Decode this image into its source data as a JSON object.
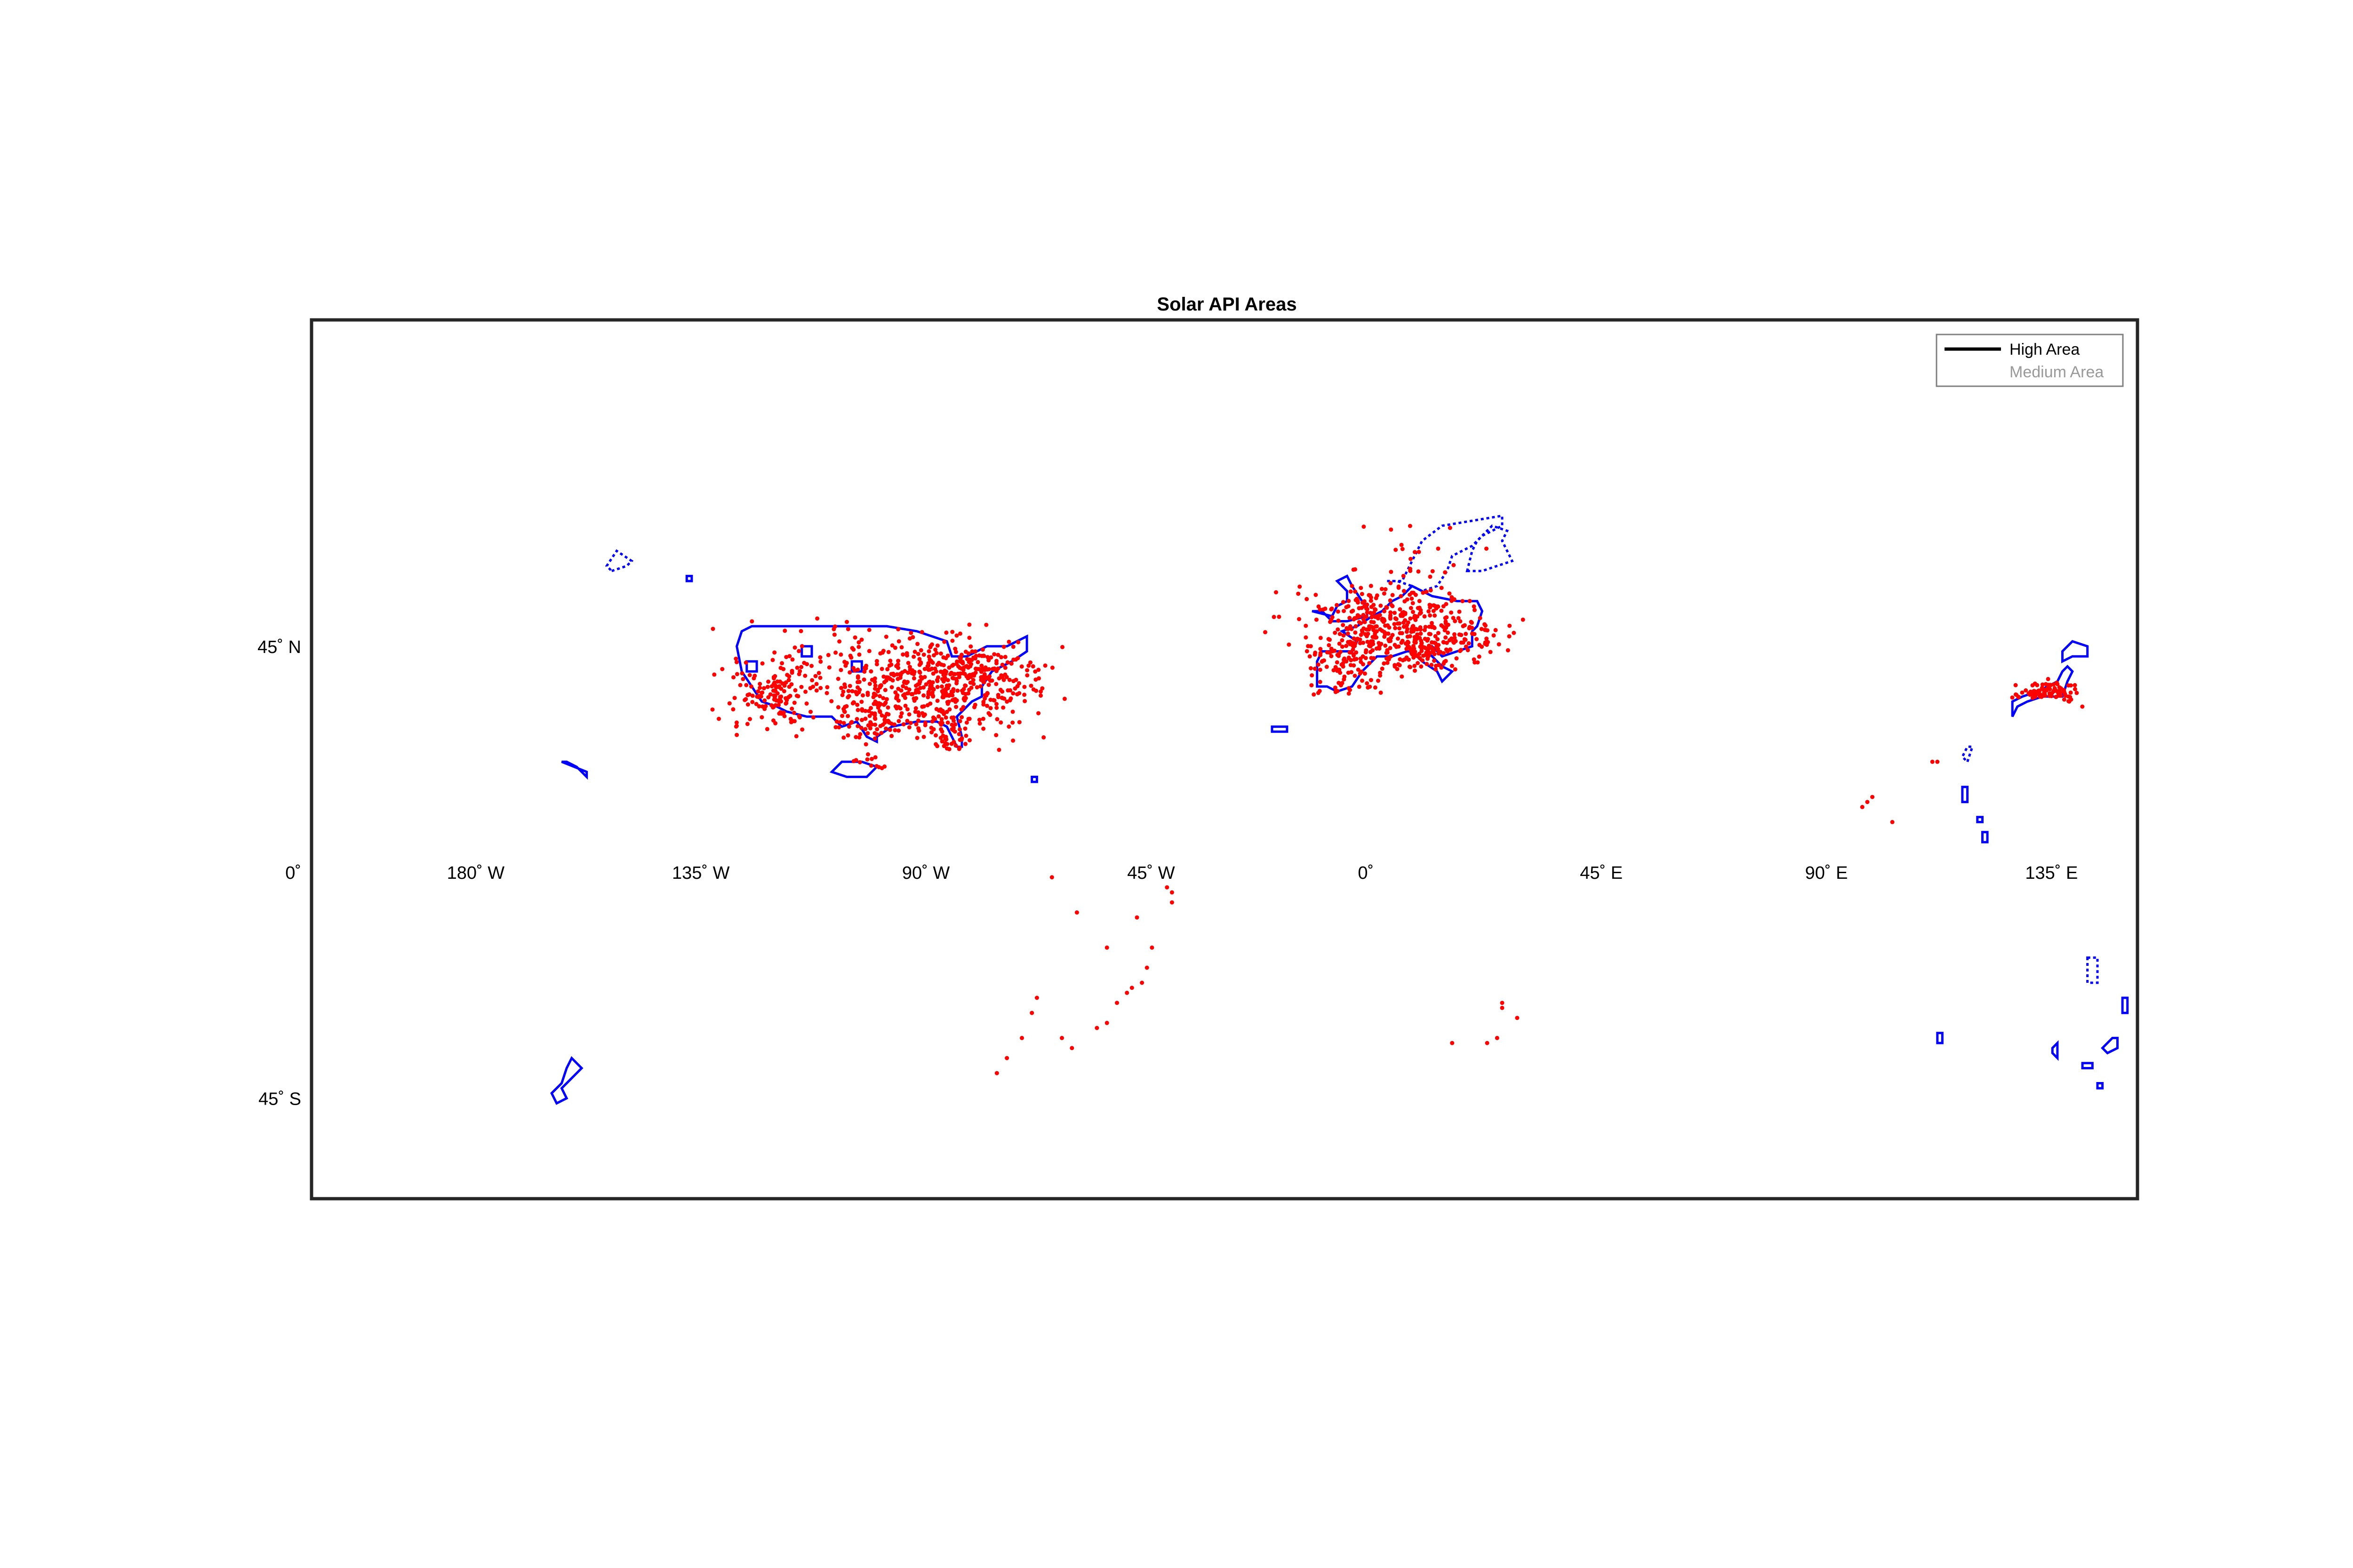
{
  "title": "Solar API Areas",
  "colors": {
    "boundary": "#0000ff",
    "point": "#ff0000",
    "frame": "#262626",
    "legend_high": "#000000",
    "legend_medium": "#999999"
  },
  "legend": {
    "placement": "top-right",
    "items": [
      {
        "label": "High Area",
        "style": "solid"
      },
      {
        "label": "Medium Area",
        "style": "faded"
      }
    ]
  },
  "axes": {
    "projection": "equirectangular",
    "lon_range": [
      -210,
      155
    ],
    "lat_range": [
      -65,
      110
    ],
    "lon_ticks": [
      {
        "value": -180,
        "label": "180˚ W"
      },
      {
        "value": -135,
        "label": "135˚ W"
      },
      {
        "value": -90,
        "label": "90˚ W"
      },
      {
        "value": -45,
        "label": "45˚ W"
      },
      {
        "value": 0,
        "label": "0˚"
      },
      {
        "value": 45,
        "label": "45˚ E"
      },
      {
        "value": 90,
        "label": "90˚ E"
      },
      {
        "value": 135,
        "label": "135˚ E"
      }
    ],
    "lat_ticks": [
      {
        "value": 45,
        "label": "45˚ N"
      },
      {
        "value": 0,
        "label": "0˚"
      },
      {
        "value": -45,
        "label": "45˚ S"
      }
    ]
  },
  "regions": [
    {
      "name": "",
      "dash": false,
      "lonlat": [
        [
          -124,
          48
        ],
        [
          -122,
          49
        ],
        [
          -95,
          49
        ],
        [
          -89,
          48
        ],
        [
          -83,
          46
        ],
        [
          -82,
          43
        ],
        [
          -79,
          43
        ],
        [
          -75,
          45
        ],
        [
          -71,
          45
        ],
        [
          -67,
          47
        ],
        [
          -67,
          44
        ],
        [
          -70,
          42
        ],
        [
          -74,
          40
        ],
        [
          -76,
          37
        ],
        [
          -76,
          35
        ],
        [
          -78,
          34
        ],
        [
          -81,
          31
        ],
        [
          -80,
          27
        ],
        [
          -80,
          25
        ],
        [
          -81,
          25
        ],
        [
          -83,
          29
        ],
        [
          -85,
          30
        ],
        [
          -89,
          30
        ],
        [
          -94,
          29
        ],
        [
          -97,
          27
        ],
        [
          -97,
          26
        ],
        [
          -99,
          27
        ],
        [
          -101,
          30
        ],
        [
          -104,
          29
        ],
        [
          -106,
          31
        ],
        [
          -111,
          31
        ],
        [
          -115,
          32
        ],
        [
          -117,
          33
        ],
        [
          -120,
          34
        ],
        [
          -122,
          37
        ],
        [
          -124,
          40
        ],
        [
          -125,
          45
        ]
      ]
    },
    {
      "name": "",
      "dash": false,
      "lonlat": [
        [
          -9,
          37
        ],
        [
          -9,
          42
        ],
        [
          -8,
          44
        ],
        [
          -2,
          44
        ],
        [
          -1,
          46
        ],
        [
          -4,
          48
        ],
        [
          -1,
          49
        ],
        [
          2,
          51
        ],
        [
          4,
          52
        ],
        [
          6,
          54
        ],
        [
          8,
          55
        ],
        [
          10,
          57
        ],
        [
          12,
          56
        ],
        [
          14,
          55
        ],
        [
          19,
          54
        ],
        [
          23,
          54
        ],
        [
          24,
          52
        ],
        [
          23,
          49
        ],
        [
          22,
          48
        ],
        [
          22,
          45
        ],
        [
          19,
          44
        ],
        [
          16,
          43
        ],
        [
          14,
          45
        ],
        [
          13,
          44
        ],
        [
          16,
          41
        ],
        [
          18,
          40
        ],
        [
          16,
          38
        ],
        [
          15,
          40
        ],
        [
          12,
          42
        ],
        [
          10,
          44
        ],
        [
          9,
          44
        ],
        [
          6,
          43
        ],
        [
          3,
          43
        ],
        [
          0,
          40
        ],
        [
          -2,
          37
        ],
        [
          -5,
          36
        ],
        [
          -7,
          37
        ]
      ]
    },
    {
      "name": "",
      "dash": true,
      "lonlat": [
        [
          5,
          58
        ],
        [
          8,
          58
        ],
        [
          10,
          62
        ],
        [
          12,
          66
        ],
        [
          16,
          69
        ],
        [
          22,
          70
        ],
        [
          28,
          71
        ],
        [
          28,
          69
        ],
        [
          24,
          67
        ],
        [
          22,
          65
        ],
        [
          18,
          63
        ],
        [
          17,
          60
        ],
        [
          15,
          57
        ],
        [
          12,
          56
        ],
        [
          10,
          57
        ],
        [
          7,
          58
        ]
      ]
    },
    {
      "name": "",
      "dash": true,
      "lonlat": [
        [
          21,
          60
        ],
        [
          24,
          60
        ],
        [
          27,
          61
        ],
        [
          30,
          62
        ],
        [
          28,
          66
        ],
        [
          29,
          68
        ],
        [
          26,
          69
        ],
        [
          23,
          66
        ],
        [
          22,
          64
        ]
      ]
    },
    {
      "name": "",
      "dash": false,
      "lonlat": [
        [
          -10,
          52
        ],
        [
          -6,
          51
        ],
        [
          -5,
          53
        ],
        [
          -3,
          54
        ],
        [
          -3,
          56
        ],
        [
          -5,
          58
        ],
        [
          -3,
          59
        ],
        [
          -2,
          57
        ],
        [
          0,
          54
        ],
        [
          1,
          53
        ],
        [
          1,
          51
        ],
        [
          -3,
          50
        ],
        [
          -6,
          50
        ],
        [
          -8,
          52
        ]
      ]
    },
    {
      "name": "",
      "dash": false,
      "lonlat": [
        [
          130,
          31
        ],
        [
          131,
          33
        ],
        [
          133,
          34
        ],
        [
          136,
          35
        ],
        [
          140,
          35
        ],
        [
          141,
          38
        ],
        [
          142,
          40
        ],
        [
          141,
          41
        ],
        [
          140,
          40
        ],
        [
          139,
          38
        ],
        [
          137,
          37
        ],
        [
          135,
          36
        ],
        [
          132,
          35
        ],
        [
          130,
          34
        ]
      ]
    },
    {
      "name": "",
      "dash": false,
      "lonlat": [
        [
          140,
          42
        ],
        [
          142,
          43
        ],
        [
          145,
          43
        ],
        [
          145,
          45
        ],
        [
          142,
          46
        ],
        [
          140,
          44
        ]
      ]
    },
    {
      "name": "",
      "dash": true,
      "lonlat": [
        [
          121,
          22
        ],
        [
          122,
          25
        ],
        [
          121,
          25
        ],
        [
          120,
          23
        ]
      ]
    },
    {
      "name": "",
      "dash": false,
      "lonlat": [
        [
          -160,
          22
        ],
        [
          -155,
          20
        ],
        [
          -155,
          19
        ],
        [
          -157,
          21
        ],
        [
          -159,
          22
        ]
      ]
    },
    {
      "name": "",
      "dash": true,
      "lonlat": [
        [
          -150,
          60
        ],
        [
          -147,
          61
        ],
        [
          -146,
          62
        ],
        [
          -149,
          64
        ],
        [
          -151,
          61
        ]
      ]
    },
    {
      "name": "",
      "dash": false,
      "lonlat": [
        [
          -158,
          -37
        ],
        [
          -156,
          -39
        ],
        [
          -158,
          -41
        ],
        [
          -160,
          -43
        ],
        [
          -159,
          -45
        ],
        [
          -161,
          -46
        ],
        [
          -162,
          -44
        ],
        [
          -160,
          -42
        ],
        [
          -159,
          -39
        ]
      ]
    },
    {
      "name": "",
      "dash": false,
      "lonlat": [
        [
          115,
          -32
        ],
        [
          116,
          -32
        ],
        [
          116,
          -34
        ],
        [
          115,
          -34
        ]
      ]
    },
    {
      "name": "",
      "dash": false,
      "lonlat": [
        [
          138,
          -35
        ],
        [
          139,
          -34
        ],
        [
          139,
          -37
        ],
        [
          138,
          -36
        ]
      ]
    },
    {
      "name": "",
      "dash": false,
      "lonlat": [
        [
          144,
          -38
        ],
        [
          146,
          -38
        ],
        [
          146,
          -39
        ],
        [
          144,
          -39
        ]
      ]
    },
    {
      "name": "",
      "dash": true,
      "lonlat": [
        [
          145,
          -17
        ],
        [
          147,
          -17
        ],
        [
          147,
          -22
        ],
        [
          145,
          -22
        ]
      ]
    },
    {
      "name": "",
      "dash": false,
      "lonlat": [
        [
          152,
          -25
        ],
        [
          153,
          -25
        ],
        [
          153,
          -28
        ],
        [
          152,
          -28
        ]
      ]
    },
    {
      "name": "",
      "dash": false,
      "lonlat": [
        [
          150,
          -33
        ],
        [
          151,
          -33
        ],
        [
          151,
          -35
        ],
        [
          149,
          -36
        ],
        [
          148,
          -35
        ]
      ]
    },
    {
      "name": "",
      "dash": false,
      "lonlat": [
        [
          147,
          -42
        ],
        [
          148,
          -42
        ],
        [
          148,
          -43
        ],
        [
          147,
          -43
        ]
      ]
    },
    {
      "name": "",
      "dash": false,
      "lonlat": [
        [
          -66,
          18
        ],
        [
          -65,
          18
        ],
        [
          -65,
          19
        ],
        [
          -66,
          19
        ]
      ]
    },
    {
      "name": "",
      "dash": false,
      "lonlat": [
        [
          -18,
          28
        ],
        [
          -15,
          28
        ],
        [
          -15,
          29
        ],
        [
          -18,
          29
        ]
      ]
    },
    {
      "name": "",
      "dash": false,
      "lonlat": [
        [
          -106,
          20
        ],
        [
          -103,
          19
        ],
        [
          -99,
          19
        ],
        [
          -97,
          21
        ],
        [
          -100,
          22
        ],
        [
          -104,
          22
        ]
      ]
    },
    {
      "name": "",
      "dash": false,
      "lonlat": [
        [
          -135,
          58
        ],
        [
          -134,
          58
        ],
        [
          -134,
          59
        ],
        [
          -135,
          59
        ]
      ]
    },
    {
      "name": "",
      "dash": false,
      "lonlat": [
        [
          120,
          14
        ],
        [
          121,
          14
        ],
        [
          121,
          17
        ],
        [
          120,
          17
        ]
      ]
    },
    {
      "name": "",
      "dash": false,
      "lonlat": [
        [
          123,
          10
        ],
        [
          124,
          10
        ],
        [
          124,
          11
        ],
        [
          123,
          11
        ]
      ]
    },
    {
      "name": "",
      "dash": false,
      "lonlat": [
        [
          124,
          8
        ],
        [
          125,
          8
        ],
        [
          125,
          6
        ],
        [
          124,
          6
        ]
      ]
    },
    {
      "name": "",
      "dash": false,
      "lonlat": [
        [
          -123,
          40
        ],
        [
          -121,
          40
        ],
        [
          -121,
          42
        ],
        [
          -123,
          42
        ]
      ]
    },
    {
      "name": "",
      "dash": false,
      "lonlat": [
        [
          -102,
          40
        ],
        [
          -100,
          40
        ],
        [
          -100,
          42
        ],
        [
          -102,
          42
        ]
      ]
    },
    {
      "name": "",
      "dash": false,
      "lonlat": [
        [
          -112,
          43
        ],
        [
          -110,
          43
        ],
        [
          -110,
          45
        ],
        [
          -112,
          45
        ]
      ]
    }
  ],
  "point_clusters": [
    {
      "lon": -87,
      "lat": 37,
      "spread_lon": 11,
      "spread_lat": 5,
      "count": 420
    },
    {
      "lon": -78,
      "lat": 39,
      "spread_lon": 6,
      "spread_lat": 3,
      "count": 160
    },
    {
      "lon": -97,
      "lat": 31,
      "spread_lon": 5,
      "spread_lat": 3,
      "count": 80
    },
    {
      "lon": -118,
      "lat": 35,
      "spread_lon": 4,
      "spread_lat": 3,
      "count": 110
    },
    {
      "lon": -110,
      "lat": 40,
      "spread_lon": 9,
      "spread_lat": 5,
      "count": 70
    },
    {
      "lon": -82,
      "lat": 28,
      "spread_lon": 2,
      "spread_lat": 2,
      "count": 40
    },
    {
      "lon": 5,
      "lat": 49,
      "spread_lon": 9,
      "spread_lat": 4,
      "count": 380
    },
    {
      "lon": -3,
      "lat": 41,
      "spread_lon": 4,
      "spread_lat": 3,
      "count": 90
    },
    {
      "lon": 20,
      "lat": 47,
      "spread_lon": 6,
      "spread_lat": 3,
      "count": 70
    },
    {
      "lon": 11,
      "lat": 44,
      "spread_lon": 3,
      "spread_lat": 2,
      "count": 50
    },
    {
      "lon": 137,
      "lat": 36,
      "spread_lon": 3,
      "spread_lat": 1,
      "count": 90
    },
    {
      "lon": 10,
      "lat": 60,
      "spread_lon": 6,
      "spread_lat": 4,
      "count": 30
    },
    {
      "lon": -99,
      "lat": 22,
      "spread_lon": 2,
      "spread_lat": 1,
      "count": 12
    }
  ],
  "points": [
    [
      -62,
      -1
    ],
    [
      -57,
      -8
    ],
    [
      -45,
      -9
    ],
    [
      -38,
      -6
    ],
    [
      -38,
      -4
    ],
    [
      -39,
      -3
    ],
    [
      -51,
      -15
    ],
    [
      -42,
      -15
    ],
    [
      -43,
      -19
    ],
    [
      -44,
      -22
    ],
    [
      -46,
      -23
    ],
    [
      -47,
      -24
    ],
    [
      -49,
      -26
    ],
    [
      -51,
      -30
    ],
    [
      -65,
      -25
    ],
    [
      -66,
      -28
    ],
    [
      -68,
      -33
    ],
    [
      -71,
      -37
    ],
    [
      -73,
      -40
    ],
    [
      -58,
      -35
    ],
    [
      -60,
      -33
    ],
    [
      -53,
      -31
    ],
    [
      28,
      -26
    ],
    [
      28,
      -27
    ],
    [
      31,
      -29
    ],
    [
      18,
      -34
    ],
    [
      25,
      -34
    ],
    [
      27,
      -33
    ],
    [
      100,
      13
    ],
    [
      101,
      14
    ],
    [
      102,
      15
    ],
    [
      106,
      10
    ],
    [
      114,
      22
    ],
    [
      115,
      22
    ]
  ]
}
